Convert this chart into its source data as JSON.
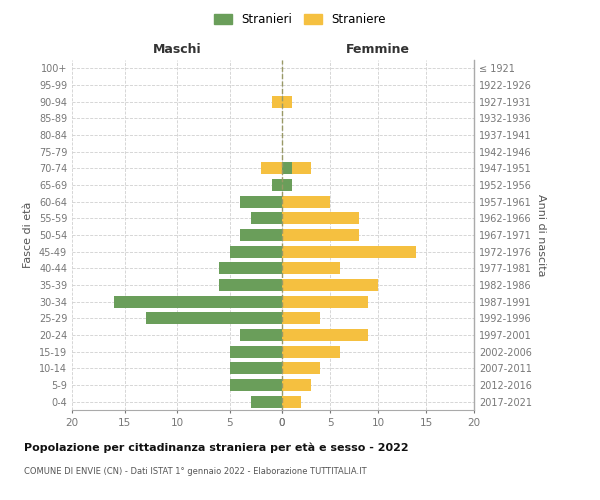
{
  "age_groups": [
    "0-4",
    "5-9",
    "10-14",
    "15-19",
    "20-24",
    "25-29",
    "30-34",
    "35-39",
    "40-44",
    "45-49",
    "50-54",
    "55-59",
    "60-64",
    "65-69",
    "70-74",
    "75-79",
    "80-84",
    "85-89",
    "90-94",
    "95-99",
    "100+"
  ],
  "birth_years": [
    "2017-2021",
    "2012-2016",
    "2007-2011",
    "2002-2006",
    "1997-2001",
    "1992-1996",
    "1987-1991",
    "1982-1986",
    "1977-1981",
    "1972-1976",
    "1967-1971",
    "1962-1966",
    "1957-1961",
    "1952-1956",
    "1947-1951",
    "1942-1946",
    "1937-1941",
    "1932-1936",
    "1927-1931",
    "1922-1926",
    "≤ 1921"
  ],
  "maschi_stranieri": [
    3,
    5,
    5,
    5,
    4,
    13,
    16,
    6,
    6,
    5,
    4,
    3,
    4,
    1,
    1,
    0,
    0,
    0,
    0,
    0,
    0
  ],
  "femmine_straniere": [
    2,
    3,
    4,
    6,
    9,
    4,
    9,
    10,
    6,
    14,
    8,
    8,
    5,
    1,
    3,
    0,
    0,
    0,
    1,
    0,
    0
  ],
  "femmine_stranieri_m": [
    0,
    0,
    0,
    0,
    0,
    0,
    0,
    0,
    0,
    0,
    0,
    0,
    0,
    1,
    1,
    0,
    0,
    0,
    0,
    0,
    0
  ],
  "maschi_straniere_f": [
    0,
    0,
    0,
    0,
    0,
    0,
    0,
    0,
    0,
    0,
    0,
    0,
    0,
    0,
    2,
    0,
    0,
    0,
    1,
    0,
    0
  ],
  "color_stranieri": "#6a9e5a",
  "color_straniere": "#f5c040",
  "title": "Popolazione per cittadinanza straniera per età e sesso - 2022",
  "subtitle": "COMUNE DI ENVIE (CN) - Dati ISTAT 1° gennaio 2022 - Elaborazione TUTTITALIA.IT",
  "xlabel_left": "Maschi",
  "xlabel_right": "Femmine",
  "ylabel_left": "Fasce di età",
  "ylabel_right": "Anni di nascita",
  "legend_stranieri": "Stranieri",
  "legend_straniere": "Straniere",
  "xlim": 20,
  "background_color": "#ffffff"
}
